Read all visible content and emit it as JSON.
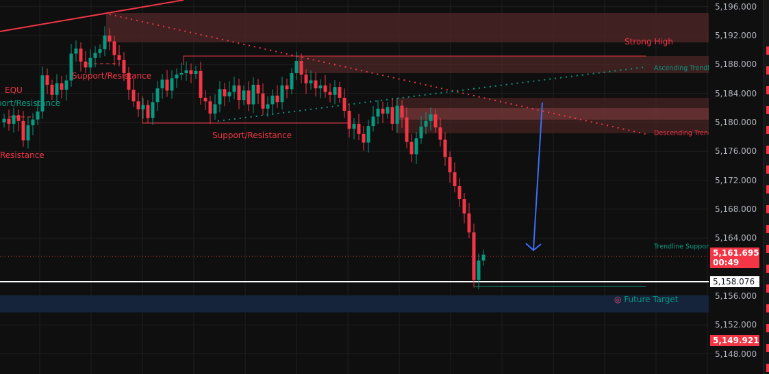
{
  "chart_data": {
    "type": "candlestick",
    "symbol_price_scale": {
      "min": 5146,
      "max": 5197
    },
    "y_ticks": [
      "5,196.000",
      "5,192.000",
      "5,188.000",
      "5,184.000",
      "5,180.000",
      "5,176.000",
      "5,172.000",
      "5,168.000",
      "5,164.000",
      "5,156.000",
      "5,152.000",
      "5,148.000"
    ],
    "y_tick_values": [
      5196,
      5192,
      5188,
      5184,
      5180,
      5176,
      5172,
      5168,
      5164,
      5156,
      5152,
      5148
    ],
    "first_open": 5180.0,
    "closes": [
      5180.5,
      5179.8,
      5181,
      5180.2,
      5177.5,
      5179.6,
      5180.4,
      5181.5,
      5186.5,
      5185.2,
      5183.8,
      5185.4,
      5184.5,
      5185.8,
      5189.5,
      5190.2,
      5188.4,
      5187.6,
      5188.9,
      5189.6,
      5190.1,
      5192,
      5191.2,
      5189.3,
      5188.6,
      5186.8,
      5184.5,
      5182.9,
      5181.8,
      5182.4,
      5180.6,
      5182.8,
      5184.7,
      5185.9,
      5184.4,
      5186.1,
      5186.6,
      5186.8,
      5187.2,
      5186.7,
      5187.1,
      5183.4,
      5182.9,
      5181.2,
      5182.5,
      5184.6,
      5183.6,
      5184.2,
      5185.1,
      5183.1,
      5184.4,
      5182.5,
      5185.2,
      5184,
      5181.9,
      5182.5,
      5183.7,
      5182.8,
      5185.1,
      5184.6,
      5186.8,
      5188.5,
      5186.6,
      5185.4,
      5185.8,
      5184.7,
      5185.1,
      5184.2,
      5183.8,
      5184.9,
      5183.4,
      5181.6,
      5179.1,
      5179.8,
      5178.4,
      5177.2,
      5179.5,
      5180.8,
      5181.9,
      5181.2,
      5182.1,
      5179.8,
      5182.3,
      5180.7,
      5177.3,
      5175.6,
      5177.8,
      5179.4,
      5180.2,
      5181.1,
      5179.3,
      5177.6,
      5175.2,
      5173.1,
      5171.2,
      5169.4,
      5167.4,
      5164.8,
      5158.2,
      5160.9,
      5161.7
    ],
    "colors": {
      "up": "#089981",
      "down": "#f23645"
    },
    "annotations": {
      "strong_high": "Strong High",
      "ascending": "Ascending Trendline",
      "descending": "Descending Trendline",
      "trend_support": "Trendline Support",
      "future_target": "Future Target",
      "sr1": "Support/Resistance",
      "sr2": "Support/Resistance",
      "sr_left": "Support/Resistance",
      "equ": "EQU",
      "resistance": "Resistance"
    },
    "price_tags": {
      "current": "5,161.695",
      "countdown": "00:49",
      "line": "5,158.076",
      "low": "5,149.921"
    }
  }
}
